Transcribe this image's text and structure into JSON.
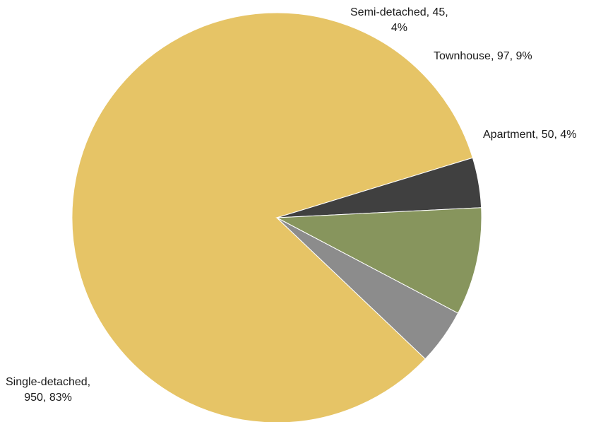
{
  "chart_data": {
    "type": "pie",
    "title": "",
    "slices": [
      {
        "label": "Single-detached",
        "value": 950,
        "percent": "83%",
        "color": "#E6C466"
      },
      {
        "label": "Semi-detached",
        "value": 45,
        "percent": "4%",
        "color": "#404040"
      },
      {
        "label": "Townhouse",
        "value": 97,
        "percent": "9%",
        "color": "#87955D"
      },
      {
        "label": "Apartment",
        "value": 50,
        "percent": "4%",
        "color": "#8C8C8C"
      }
    ],
    "data_labels": {
      "single_detached": [
        "Single-detached,",
        "950, 83%"
      ],
      "semi_detached": [
        "Semi-detached, 45,",
        "4%"
      ],
      "townhouse": [
        "Townhouse, 97, 9%"
      ],
      "apartment": [
        "Apartment, 50, 4%"
      ]
    },
    "legend": "none"
  }
}
